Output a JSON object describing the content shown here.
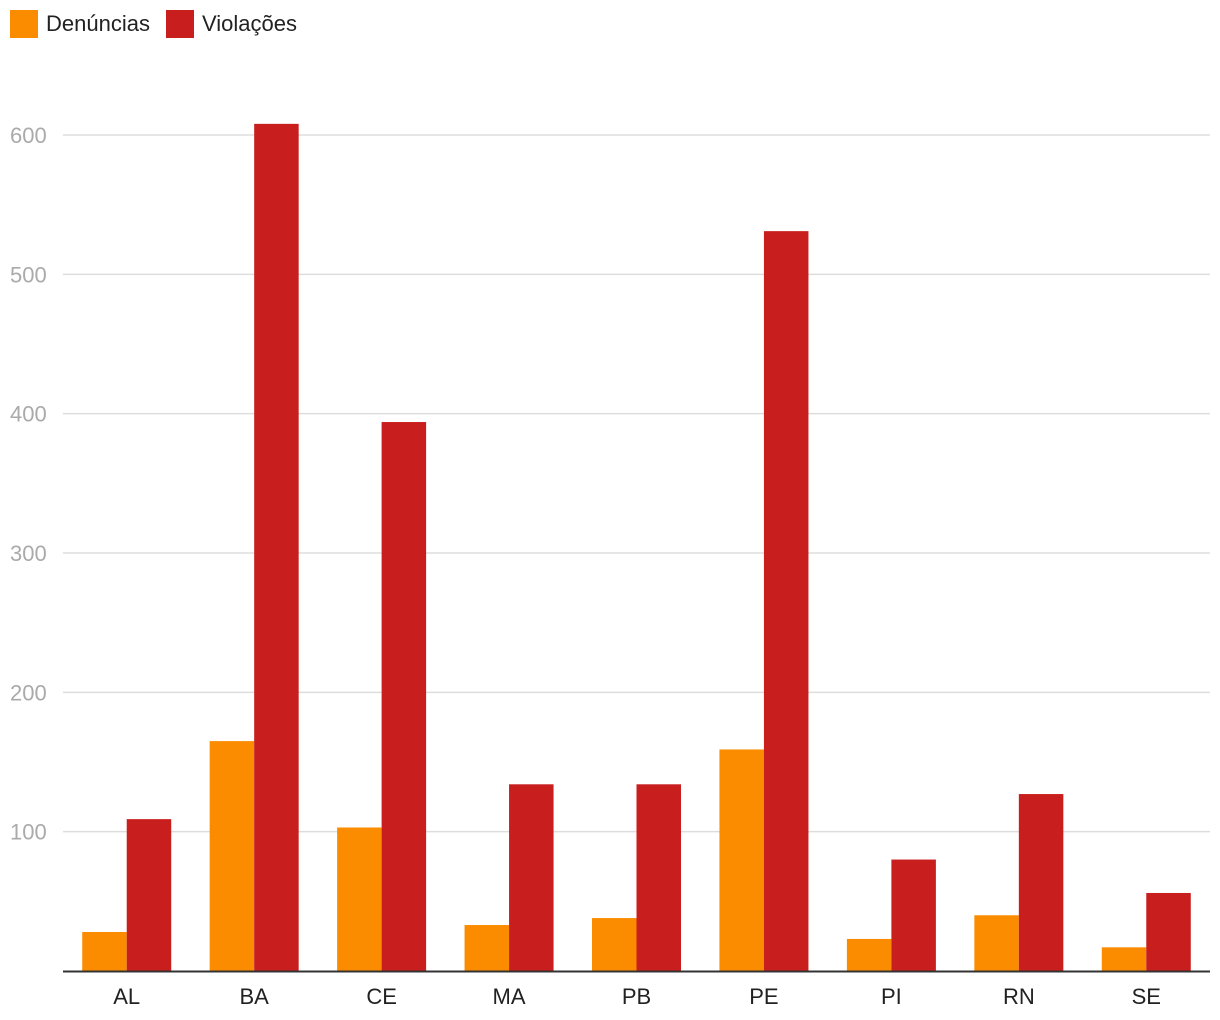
{
  "legend": [
    {
      "label": "Denúncias",
      "color": "#FB8C00"
    },
    {
      "label": "Violações",
      "color": "#C91E1E"
    }
  ],
  "chart_data": {
    "type": "bar",
    "categories": [
      "AL",
      "BA",
      "CE",
      "MA",
      "PB",
      "PE",
      "PI",
      "RN",
      "SE"
    ],
    "series": [
      {
        "name": "Denúncias",
        "color": "#FB8C00",
        "values": [
          28,
          165,
          103,
          33,
          38,
          159,
          23,
          40,
          17
        ]
      },
      {
        "name": "Violações",
        "color": "#C91E1E",
        "values": [
          109,
          608,
          394,
          134,
          134,
          531,
          80,
          127,
          56
        ]
      }
    ],
    "yticks": [
      100,
      200,
      300,
      400,
      500,
      600
    ],
    "ylim": [
      0,
      600
    ],
    "grid": true,
    "legend_position": "top-left",
    "title": "",
    "xlabel": "",
    "ylabel": ""
  }
}
